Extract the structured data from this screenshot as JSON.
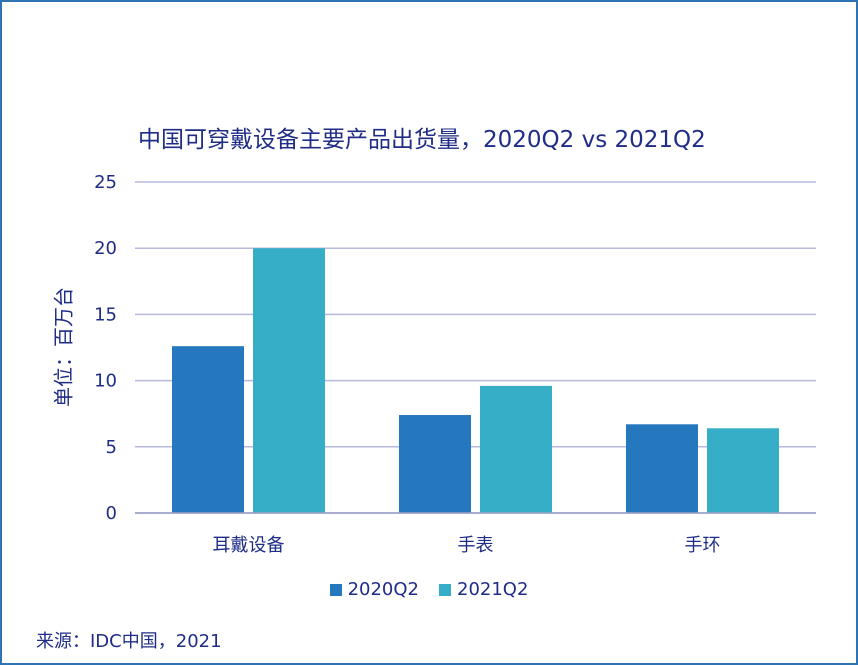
{
  "chart_data": {
    "type": "bar",
    "title": "中国可穿戴设备主要产品出货量，2020Q2 vs 2021Q2",
    "ylabel": "单位：百万台",
    "xlabel": "",
    "categories": [
      "耳戴设备",
      "手表",
      "手环"
    ],
    "series": [
      {
        "name": "2020Q2",
        "color": "#2577be",
        "values": [
          12.6,
          7.4,
          6.7
        ]
      },
      {
        "name": "2021Q2",
        "color": "#37aec8",
        "values": [
          20.0,
          9.6,
          6.4
        ]
      }
    ],
    "ylim": [
      0,
      25
    ],
    "yticks": [
      0,
      5,
      10,
      15,
      20,
      25
    ],
    "grid": true,
    "legend": "bottom",
    "source": "来源：IDC中国，2021"
  }
}
